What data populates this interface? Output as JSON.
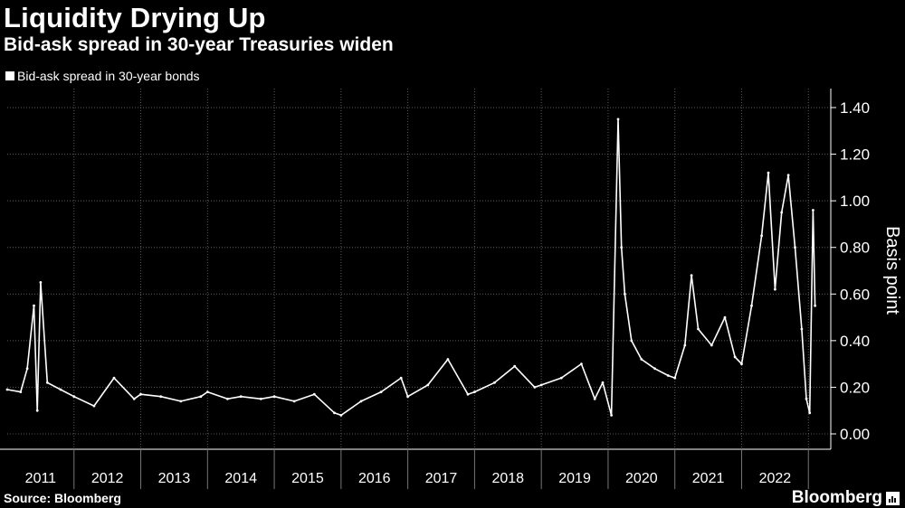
{
  "header": {
    "title": "Liquidity Drying Up",
    "subtitle": "Bid-ask spread in 30-year Treasuries widen"
  },
  "footer": {
    "source": "Source: Bloomberg",
    "brand": "Bloomberg"
  },
  "colors": {
    "background": "#000000",
    "series": "#ffffff",
    "grid": "#5a5a5a"
  },
  "chart_data": {
    "type": "line",
    "title": "Liquidity Drying Up",
    "subtitle": "Bid-ask spread in 30-year Treasuries widen",
    "xlabel": "",
    "ylabel": "Basis point",
    "ylim": [
      0,
      1.4
    ],
    "yticks": [
      "0.00",
      "0.20",
      "0.40",
      "0.60",
      "0.80",
      "1.00",
      "1.20",
      "1.40"
    ],
    "ytick_values": [
      0,
      0.2,
      0.4,
      0.6,
      0.8,
      1.0,
      1.2,
      1.4
    ],
    "xlim": [
      2011.0,
      2023.2
    ],
    "xticks": [
      "2011",
      "2012",
      "2013",
      "2014",
      "2015",
      "2016",
      "2017",
      "2018",
      "2019",
      "2020",
      "2021",
      "2022"
    ],
    "xtick_values": [
      2011,
      2012,
      2013,
      2014,
      2015,
      2016,
      2017,
      2018,
      2019,
      2020,
      2021,
      2022
    ],
    "grid": true,
    "legend_position": "top-left",
    "series": [
      {
        "name": "Bid-ask spread in 30-year bonds",
        "points": [
          [
            2011.0,
            0.19
          ],
          [
            2011.2,
            0.18
          ],
          [
            2011.3,
            0.28
          ],
          [
            2011.4,
            0.55
          ],
          [
            2011.45,
            0.1
          ],
          [
            2011.5,
            0.65
          ],
          [
            2011.6,
            0.22
          ],
          [
            2011.8,
            0.19
          ],
          [
            2012.0,
            0.16
          ],
          [
            2012.3,
            0.12
          ],
          [
            2012.6,
            0.24
          ],
          [
            2012.9,
            0.15
          ],
          [
            2013.0,
            0.17
          ],
          [
            2013.3,
            0.16
          ],
          [
            2013.6,
            0.14
          ],
          [
            2013.9,
            0.16
          ],
          [
            2014.0,
            0.18
          ],
          [
            2014.3,
            0.15
          ],
          [
            2014.5,
            0.16
          ],
          [
            2014.8,
            0.15
          ],
          [
            2015.0,
            0.16
          ],
          [
            2015.3,
            0.14
          ],
          [
            2015.6,
            0.17
          ],
          [
            2015.9,
            0.09
          ],
          [
            2016.0,
            0.08
          ],
          [
            2016.3,
            0.14
          ],
          [
            2016.6,
            0.18
          ],
          [
            2016.9,
            0.24
          ],
          [
            2017.0,
            0.16
          ],
          [
            2017.3,
            0.21
          ],
          [
            2017.6,
            0.32
          ],
          [
            2017.9,
            0.17
          ],
          [
            2018.0,
            0.18
          ],
          [
            2018.3,
            0.22
          ],
          [
            2018.6,
            0.29
          ],
          [
            2018.9,
            0.2
          ],
          [
            2019.0,
            0.21
          ],
          [
            2019.3,
            0.24
          ],
          [
            2019.6,
            0.3
          ],
          [
            2019.8,
            0.15
          ],
          [
            2019.92,
            0.22
          ],
          [
            2020.05,
            0.08
          ],
          [
            2020.15,
            1.35
          ],
          [
            2020.2,
            0.8
          ],
          [
            2020.25,
            0.6
          ],
          [
            2020.35,
            0.4
          ],
          [
            2020.5,
            0.32
          ],
          [
            2020.7,
            0.28
          ],
          [
            2020.9,
            0.25
          ],
          [
            2021.0,
            0.24
          ],
          [
            2021.15,
            0.38
          ],
          [
            2021.25,
            0.68
          ],
          [
            2021.35,
            0.45
          ],
          [
            2021.55,
            0.38
          ],
          [
            2021.75,
            0.5
          ],
          [
            2021.9,
            0.33
          ],
          [
            2022.0,
            0.3
          ],
          [
            2022.15,
            0.55
          ],
          [
            2022.3,
            0.85
          ],
          [
            2022.4,
            1.12
          ],
          [
            2022.5,
            0.62
          ],
          [
            2022.6,
            0.95
          ],
          [
            2022.7,
            1.11
          ],
          [
            2022.8,
            0.8
          ],
          [
            2022.9,
            0.45
          ],
          [
            2022.97,
            0.15
          ],
          [
            2023.02,
            0.09
          ],
          [
            2023.07,
            0.96
          ],
          [
            2023.1,
            0.55
          ]
        ]
      }
    ]
  }
}
